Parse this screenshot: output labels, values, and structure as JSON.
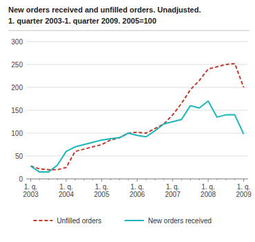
{
  "chart_data": {
    "type": "line",
    "title": "New orders received and unfilled orders. Unadjusted.",
    "subtitle": "1. quarter 2003-1. quarter 2009. 2005=100",
    "categories": [
      "1. q.\n2003",
      null,
      null,
      null,
      "1. q.\n2004",
      null,
      null,
      null,
      "1. q.\n2005",
      null,
      null,
      null,
      "1. q.\n2006",
      null,
      null,
      null,
      "1. q.\n2007",
      null,
      null,
      null,
      "1. q.\n2008",
      null,
      null,
      null,
      "1. q.\n2009"
    ],
    "series": [
      {
        "name": "Unfilled orders",
        "color": "#c0392b",
        "line_style": "dashed",
        "values": [
          28,
          22,
          20,
          20,
          25,
          60,
          65,
          70,
          75,
          85,
          90,
          100,
          102,
          100,
          110,
          120,
          140,
          165,
          195,
          215,
          240,
          245,
          250,
          252,
          200
        ]
      },
      {
        "name": "New orders received",
        "color": "#1ab5bb",
        "line_style": "solid",
        "values": [
          28,
          15,
          15,
          30,
          60,
          70,
          75,
          80,
          85,
          88,
          90,
          100,
          95,
          92,
          105,
          120,
          125,
          130,
          160,
          155,
          170,
          135,
          140,
          140,
          98
        ]
      }
    ],
    "ylim": [
      0,
      300
    ],
    "yticks": [
      0,
      50,
      100,
      150,
      200,
      250,
      300
    ],
    "grid": true,
    "legend": "bottom"
  }
}
